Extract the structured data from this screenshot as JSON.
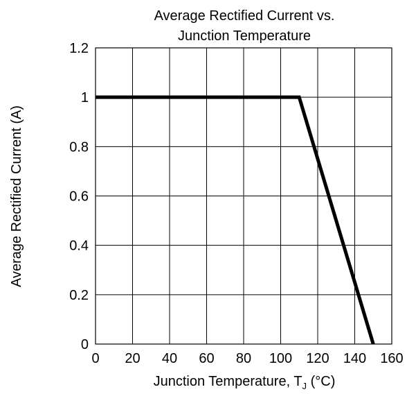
{
  "chart_data": {
    "type": "line",
    "title_lines": [
      "Average Rectified Current vs.",
      "Junction Temperature"
    ],
    "xlabel": {
      "prefix": "Junction Temperature, T",
      "subscript": "J",
      "suffix": " (°C)"
    },
    "ylabel": "Average Rectified Current (A)",
    "xlim": [
      0,
      160
    ],
    "ylim": [
      0,
      1.2
    ],
    "x_ticks": [
      0,
      20,
      40,
      60,
      80,
      100,
      120,
      140,
      160
    ],
    "x_tick_labels": [
      "0",
      "20",
      "40",
      "60",
      "80",
      "100",
      "120",
      "140",
      "160"
    ],
    "y_ticks": [
      0,
      0.2,
      0.4,
      0.6,
      0.8,
      1,
      1.2
    ],
    "y_tick_labels": [
      "0",
      "0.2",
      "0.4",
      "0.6",
      "0.8",
      "1",
      "1.2"
    ],
    "grid": true,
    "series": [
      {
        "points": [
          {
            "x": 0,
            "y": 1.0
          },
          {
            "x": 110,
            "y": 1.0
          },
          {
            "x": 150,
            "y": 0.0
          }
        ],
        "color": "#000000"
      }
    ]
  }
}
